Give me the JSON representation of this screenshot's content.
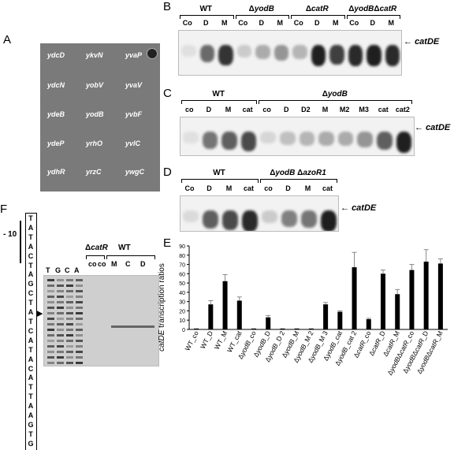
{
  "panels": {
    "A": "A",
    "B": "B",
    "C": "C",
    "D": "D",
    "E": "E",
    "F": "F"
  },
  "target_gene": "catDE",
  "panelA": {
    "strains": [
      [
        "ydcD",
        "ykvN",
        "yvaP"
      ],
      [
        "ydcN",
        "yobV",
        "yvaV"
      ],
      [
        "ydeB",
        "yodB",
        "yvbF"
      ],
      [
        "ydeP",
        "yrhO",
        "yvlC"
      ],
      [
        "ydhR",
        "yrzC",
        "ywgC"
      ]
    ]
  },
  "panelB": {
    "groups": [
      "WT",
      "ΔyodB",
      "ΔcatR",
      "ΔyodBΔcatR"
    ],
    "lanes": [
      "Co",
      "D",
      "M",
      "Co",
      "D",
      "M",
      "Co",
      "D",
      "M",
      "Co",
      "D",
      "M"
    ]
  },
  "panelC": {
    "groups": [
      "WT",
      "ΔyodB"
    ],
    "lanes": [
      "co",
      "D",
      "M",
      "cat",
      "co",
      "D",
      "D2",
      "M",
      "M2",
      "M3",
      "cat",
      "cat2"
    ]
  },
  "panelD": {
    "groups": [
      "WT",
      "ΔyodB ΔazoR1"
    ],
    "lanes": [
      "Co",
      "D",
      "M",
      "cat",
      "co",
      "D",
      "M",
      "cat"
    ]
  },
  "panelF": {
    "minus10": "- 10",
    "sequence": [
      "T",
      "A",
      "T",
      "A",
      "C",
      "T",
      "A",
      "G",
      "C",
      "T",
      "A",
      "T",
      "C",
      "A",
      "T",
      "A",
      "C",
      "A",
      "T",
      "T",
      "A",
      "A",
      "G",
      "T",
      "G"
    ],
    "ladder": [
      "T",
      "G",
      "C",
      "A"
    ],
    "groups": [
      "ΔcatR",
      "WT"
    ],
    "lanes": [
      "co",
      "co",
      "M",
      "C",
      "D"
    ]
  },
  "chart_data": {
    "type": "bar",
    "ylabel_italic": "catDE",
    "ylabel_rest": " transcription ratios",
    "ylim": [
      0,
      90
    ],
    "yticks": [
      0,
      10,
      20,
      30,
      40,
      50,
      60,
      70,
      80,
      90
    ],
    "categories": [
      "WT_co",
      "WT_D",
      "WT_M",
      "WT_cat",
      "ΔyodB_co",
      "ΔyodB_D",
      "ΔyodB_D 2",
      "ΔyodB_M",
      "ΔyodB_M 2",
      "ΔyodB_M 3",
      "ΔyodB_cat",
      "ΔyodB_cat 2",
      "ΔcatR_co",
      "ΔcatR_D",
      "ΔcatR_M",
      "ΔyodBΔcatR_co",
      "ΔyodBΔcatR_D",
      "ΔyodBΔcatR_M"
    ],
    "values": [
      1,
      27,
      52,
      31,
      1,
      13,
      1,
      1,
      1,
      27,
      19,
      67,
      11,
      60,
      38,
      64,
      73,
      71
    ],
    "errors": [
      0,
      4,
      7,
      4,
      0,
      2,
      0,
      0,
      0,
      2,
      1,
      16,
      1,
      4,
      5,
      6,
      13,
      5
    ]
  }
}
